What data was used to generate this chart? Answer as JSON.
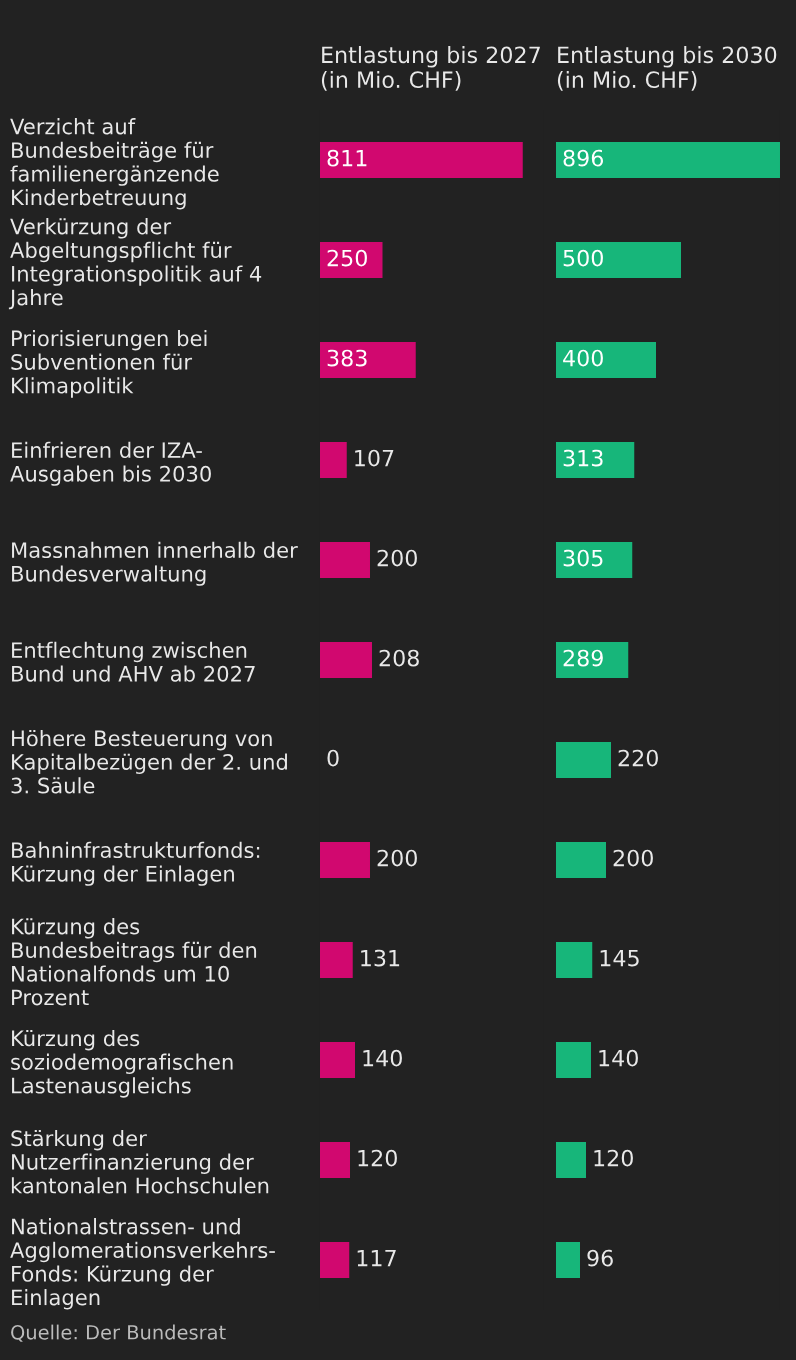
{
  "chart_data": [
    {
      "type": "bar",
      "orientation": "horizontal",
      "title": "Entlastung bis 2027\n(in Mio. CHF)",
      "categories": [
        "Verzicht auf\nBundesbeiträge für\nfamilienergänzende\nKinderbetreuung",
        "Verkürzung der\nAbgeltungspflicht für\nIntegrationspolitik auf 4\nJahre",
        "Priorisierungen bei\nSubventionen für\nKlimapolitik",
        "Einfrieren der IZA-\nAusgaben bis 2030",
        "Massnahmen innerhalb der\nBundesverwaltung",
        "Entflechtung zwischen\nBund und AHV ab 2027",
        "Höhere Besteuerung von\nKapitalbezügen der 2. und\n3. Säule",
        "Bahninfrastrukturfonds:\nKürzung der Einlagen",
        "Kürzung des\nBundesbeitrags für den\nNationalfonds um 10\nProzent",
        "Kürzung des\nsoziodemografischen\nLastenausgleichs",
        "Stärkung der\nNutzerfinanzierung der\nkantonalen Hochschulen",
        "Nationalstrassen- und\nAgglomerationsverkehrs-\nFonds: Kürzung der\nEinlagen"
      ],
      "values": [
        811,
        250,
        383,
        107,
        200,
        208,
        0,
        200,
        131,
        140,
        120,
        117
      ],
      "color": "#d1086f",
      "data_labels": true,
      "tick_labels": "y",
      "annotations": [
        "Quelle: Der Bundesrat"
      ]
    },
    {
      "type": "bar",
      "orientation": "horizontal",
      "title": "Entlastung bis 2030\n(in Mio. CHF)",
      "categories": [
        null,
        null,
        null,
        null,
        null,
        null,
        null,
        null,
        null,
        null,
        null,
        null
      ],
      "values": [
        896,
        500,
        400,
        313,
        305,
        289,
        220,
        200,
        145,
        140,
        120,
        96
      ],
      "color": "#17b67a",
      "data_labels": true,
      "tick_labels": false
    }
  ]
}
